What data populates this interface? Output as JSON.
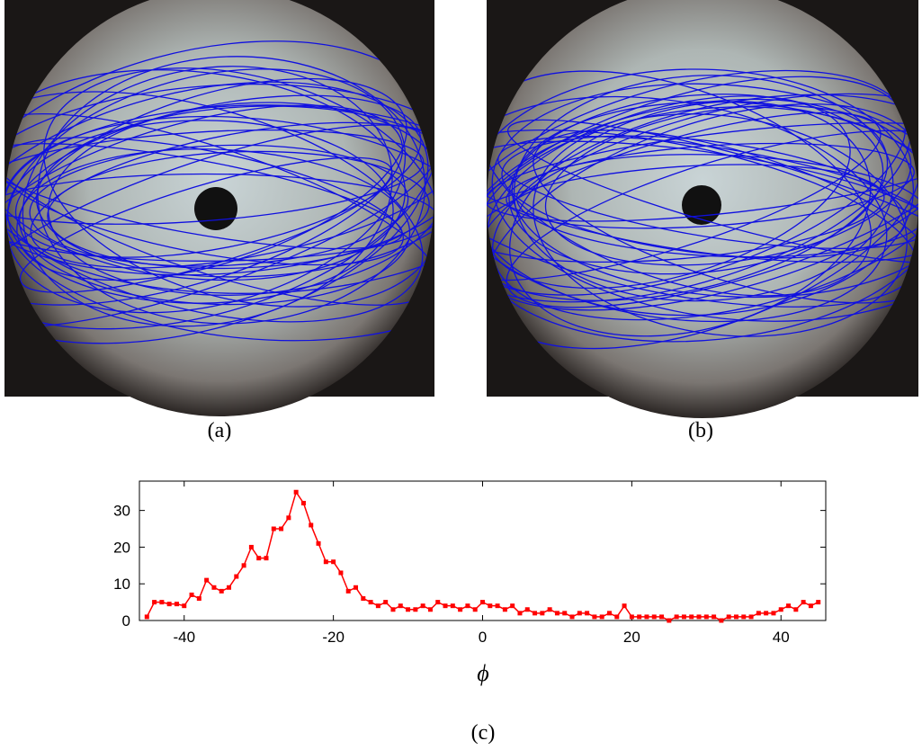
{
  "captions": [
    "(a)",
    "(b)",
    "(c)"
  ],
  "chart_data": {
    "type": "line",
    "xlabel": "ϕ",
    "x": [
      -45,
      -44,
      -43,
      -42,
      -41,
      -40,
      -39,
      -38,
      -37,
      -36,
      -35,
      -34,
      -33,
      -32,
      -31,
      -30,
      -29,
      -28,
      -27,
      -26,
      -25,
      -24,
      -23,
      -22,
      -21,
      -20,
      -19,
      -18,
      -17,
      -16,
      -15,
      -14,
      -13,
      -12,
      -11,
      -10,
      -9,
      -8,
      -7,
      -6,
      -5,
      -4,
      -3,
      -2,
      -1,
      0,
      1,
      2,
      3,
      4,
      5,
      6,
      7,
      8,
      9,
      10,
      11,
      12,
      13,
      14,
      15,
      16,
      17,
      18,
      19,
      20,
      21,
      22,
      23,
      24,
      25,
      26,
      27,
      28,
      29,
      30,
      31,
      32,
      33,
      34,
      35,
      36,
      37,
      38,
      39,
      40,
      41,
      42,
      43,
      44,
      45
    ],
    "series": [
      {
        "color": "#ff0000",
        "values": [
          1,
          5,
          5,
          4.5,
          4.5,
          4,
          7,
          6,
          11,
          9,
          8,
          9,
          12,
          15,
          20,
          17,
          17,
          25,
          25,
          28,
          35,
          32,
          26,
          21,
          16,
          16,
          13,
          8,
          9,
          6,
          5,
          4,
          5,
          3,
          4,
          3,
          3,
          4,
          3,
          5,
          4,
          4,
          3,
          4,
          3,
          5,
          4,
          4,
          3,
          4,
          2,
          3,
          2,
          2,
          3,
          2,
          2,
          1,
          2,
          2,
          1,
          1,
          2,
          1,
          4,
          1,
          1,
          1,
          1,
          1,
          0,
          1,
          1,
          1,
          1,
          1,
          1,
          0,
          1,
          1,
          1,
          1,
          2,
          2,
          2,
          3,
          4,
          3,
          5,
          4,
          5
        ]
      }
    ],
    "xlim": [
      -46,
      46
    ],
    "ylim": [
      0,
      38
    ],
    "xticks": [
      -40,
      -20,
      0,
      20,
      40
    ],
    "yticks": [
      0,
      10,
      20,
      30
    ]
  }
}
